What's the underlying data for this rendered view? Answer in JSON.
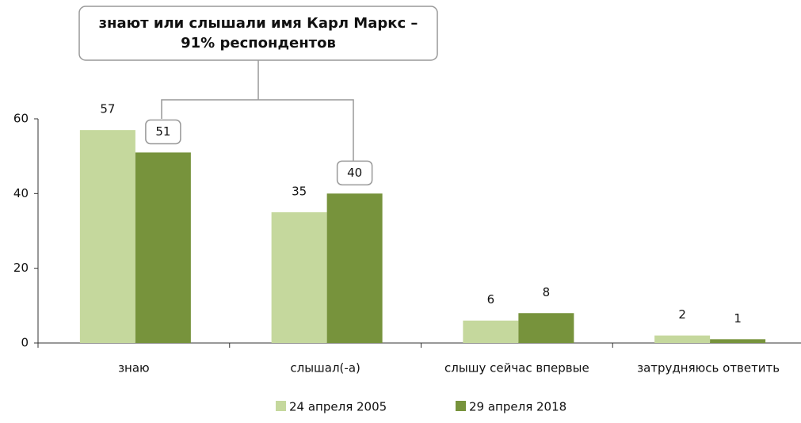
{
  "chart_data": {
    "type": "bar",
    "annotation": [
      "знают или слышали имя Карл Маркс –",
      "91% респондентов"
    ],
    "categories": [
      "знаю",
      "слышал(-а)",
      "слышу сейчас впервые",
      "затрудняюсь ответить"
    ],
    "series": [
      {
        "name": "24 апреля 2005",
        "color": "#c5d89d",
        "values": [
          57,
          35,
          6,
          2
        ]
      },
      {
        "name": "29 апреля 2018",
        "color": "#77933c",
        "values": [
          51,
          40,
          8,
          1
        ]
      }
    ],
    "ylim": [
      0,
      60
    ],
    "yticks": [
      0,
      20,
      40,
      60
    ],
    "legend": "bottom"
  }
}
